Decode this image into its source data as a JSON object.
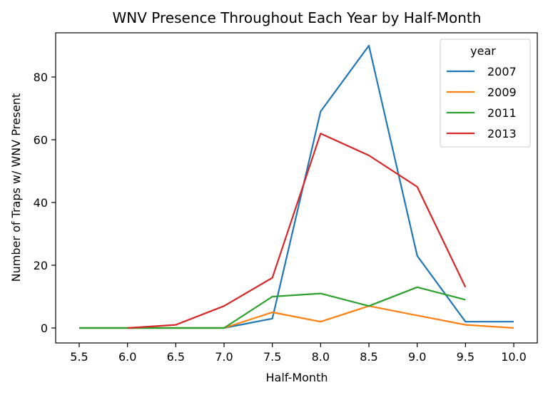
{
  "chart_data": {
    "type": "line",
    "title": "WNV Presence Throughout Each Year by Half-Month",
    "xlabel": "Half-Month",
    "ylabel": "Number of Traps w/ WNV Present",
    "xlim": [
      5.5,
      10.0
    ],
    "ylim": [
      -4.5,
      94.5
    ],
    "xticks": [
      "5.5",
      "6.0",
      "6.5",
      "7.0",
      "7.5",
      "8.0",
      "8.5",
      "9.0",
      "9.5",
      "10.0"
    ],
    "yticks": [
      "0",
      "20",
      "40",
      "60",
      "80"
    ],
    "legend": {
      "title": "year",
      "position": "top-right"
    },
    "grid": false,
    "series": [
      {
        "name": "2007",
        "color": "#1f77b4",
        "x": [
          5.5,
          6.0,
          6.5,
          7.0,
          7.5,
          8.0,
          8.5,
          9.0,
          9.5,
          10.0
        ],
        "y": [
          0,
          0,
          0,
          0,
          3,
          69,
          90,
          23,
          2,
          2
        ]
      },
      {
        "name": "2009",
        "color": "#ff7f0e",
        "x": [
          5.5,
          6.0,
          6.5,
          7.0,
          7.5,
          8.0,
          8.5,
          9.0,
          9.5,
          10.0
        ],
        "y": [
          0,
          0,
          0,
          0,
          5,
          2,
          7,
          4,
          1,
          0
        ]
      },
      {
        "name": "2011",
        "color": "#2ca02c",
        "x": [
          5.5,
          6.0,
          6.5,
          7.0,
          7.5,
          8.0,
          8.5,
          9.0,
          9.5
        ],
        "y": [
          0,
          0,
          0,
          0,
          10,
          11,
          7,
          13,
          9
        ]
      },
      {
        "name": "2013",
        "color": "#d62728",
        "x": [
          6.0,
          6.5,
          7.0,
          7.5,
          8.0,
          8.5,
          9.0,
          9.5
        ],
        "y": [
          0,
          1,
          7,
          16,
          62,
          55,
          45,
          13
        ]
      }
    ]
  }
}
